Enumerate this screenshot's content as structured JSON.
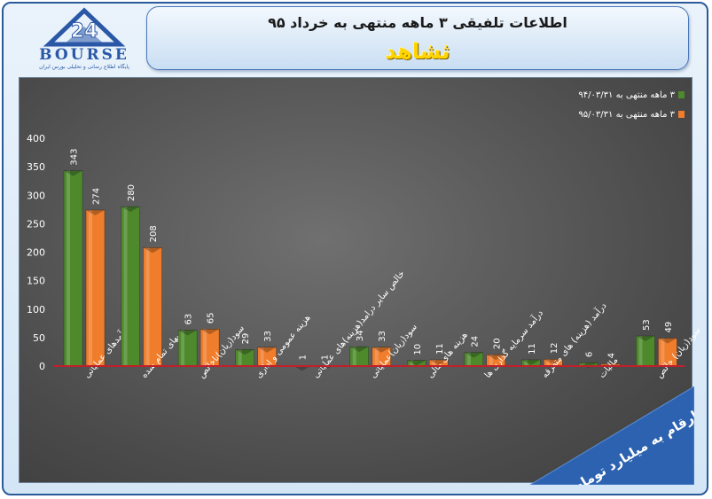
{
  "header": {
    "title": "اطلاعات تلفیقی ۳ ماهه منتهی به خرداد ۹۵",
    "company": "ثشاهد"
  },
  "logo": {
    "name": "BOURSE",
    "subtitle": "پایگاه اطلاع رسانی و تحلیلی بورس ایران"
  },
  "footer": {
    "note": "ارقام به میلیارد تومان"
  },
  "colors": {
    "series_green": "#4e8a2c",
    "series_orange": "#ef7d2c",
    "baseline": "#c0202a",
    "grid": "#8a8a8a"
  },
  "chart_data": {
    "type": "bar",
    "categories": [
      "درآمدهای عملیاتی",
      "بهای تمام شده",
      "سود(زیان)ناخالص",
      "هزینه عمومی و اداری",
      "خالص سایر درامد(هزینه)های عملیاتی",
      "سود(زیان)عملیاتی",
      "هزینه های مالی",
      "درآمد سرمایه گذاری ها",
      "درآمد (هزینه) های متفرقه",
      "مالیات",
      "سود(زیان) خالص"
    ],
    "series": [
      {
        "name": "۳ ماهه منتهی به ۹۴/۰۳/۳۱",
        "values": [
          343,
          280,
          63,
          29,
          1,
          34,
          10,
          24,
          11,
          6,
          53
        ]
      },
      {
        "name": "۳ ماهه منتهی به ۹۵/۰۳/۳۱",
        "values": [
          274,
          208,
          65,
          33,
          1,
          33,
          11,
          20,
          12,
          4,
          49
        ]
      }
    ],
    "ylim": [
      0,
      400
    ],
    "yticks": [
      0,
      50,
      100,
      150,
      200,
      250,
      300,
      350,
      400
    ],
    "grid": false,
    "legend_position": "top-right"
  }
}
